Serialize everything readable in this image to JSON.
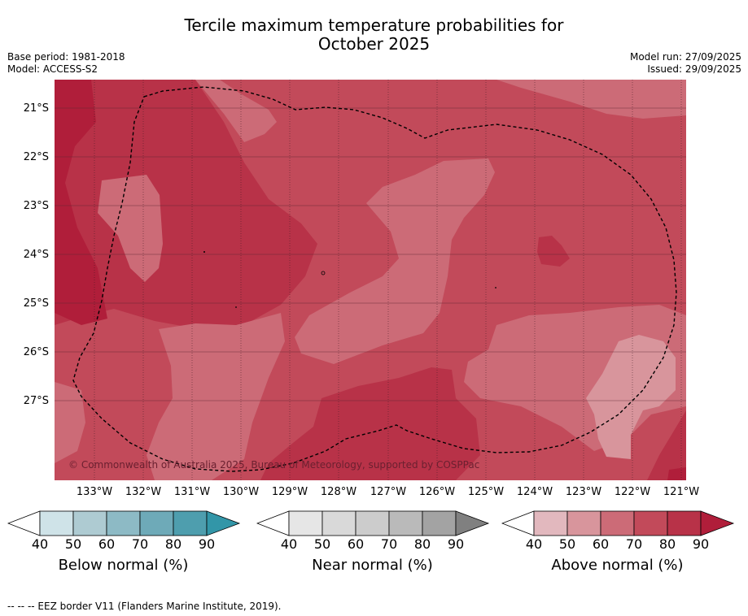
{
  "title_line1": "Tercile maximum temperature probabilities for",
  "title_line2": "October 2025",
  "meta": {
    "base_period": "Base period: 1981-2018",
    "model": "Model: ACCESS-S2",
    "model_run": "Model run: 27/09/2025",
    "issued": "Issued: 29/09/2025"
  },
  "map": {
    "lat_labels": [
      "21°S",
      "22°S",
      "23°S",
      "24°S",
      "25°S",
      "26°S",
      "27°S"
    ],
    "lon_labels": [
      "133°W",
      "132°W",
      "131°W",
      "130°W",
      "129°W",
      "128°W",
      "127°W",
      "126°W",
      "125°W",
      "124°W",
      "123°W",
      "122°W",
      "121°W"
    ],
    "copyright": "© Commonwealth of Australia 2025, Bureau of Meteorology, supported by COSPPac",
    "colors": {
      "above_70": "#c24a5a",
      "above_80": "#b83248",
      "above_90": "#b01e3a",
      "above_60": "#cc6b77",
      "above_50": "#d8959c"
    }
  },
  "colorbars": [
    {
      "label": "Below normal (%)",
      "ticks": [
        "40",
        "50",
        "60",
        "70",
        "80",
        "90"
      ],
      "colors": [
        "#cfe3e8",
        "#aecbd2",
        "#8dbac5",
        "#6eaab8",
        "#4e9eae",
        "#3296a8"
      ]
    },
    {
      "label": "Near normal (%)",
      "ticks": [
        "40",
        "50",
        "60",
        "70",
        "80",
        "90"
      ],
      "colors": [
        "#e6e6e6",
        "#d9d9d9",
        "#cccccc",
        "#bababa",
        "#a3a3a3",
        "#808080"
      ]
    },
    {
      "label": "Above normal (%)",
      "ticks": [
        "40",
        "50",
        "60",
        "70",
        "80",
        "90"
      ],
      "colors": [
        "#e2b8be",
        "#d8959c",
        "#cc6b77",
        "#c24a5a",
        "#b83248",
        "#b01e3a"
      ]
    }
  ],
  "footer": "-- -- -- EEZ border V11 (Flanders Marine Institute, 2019)."
}
